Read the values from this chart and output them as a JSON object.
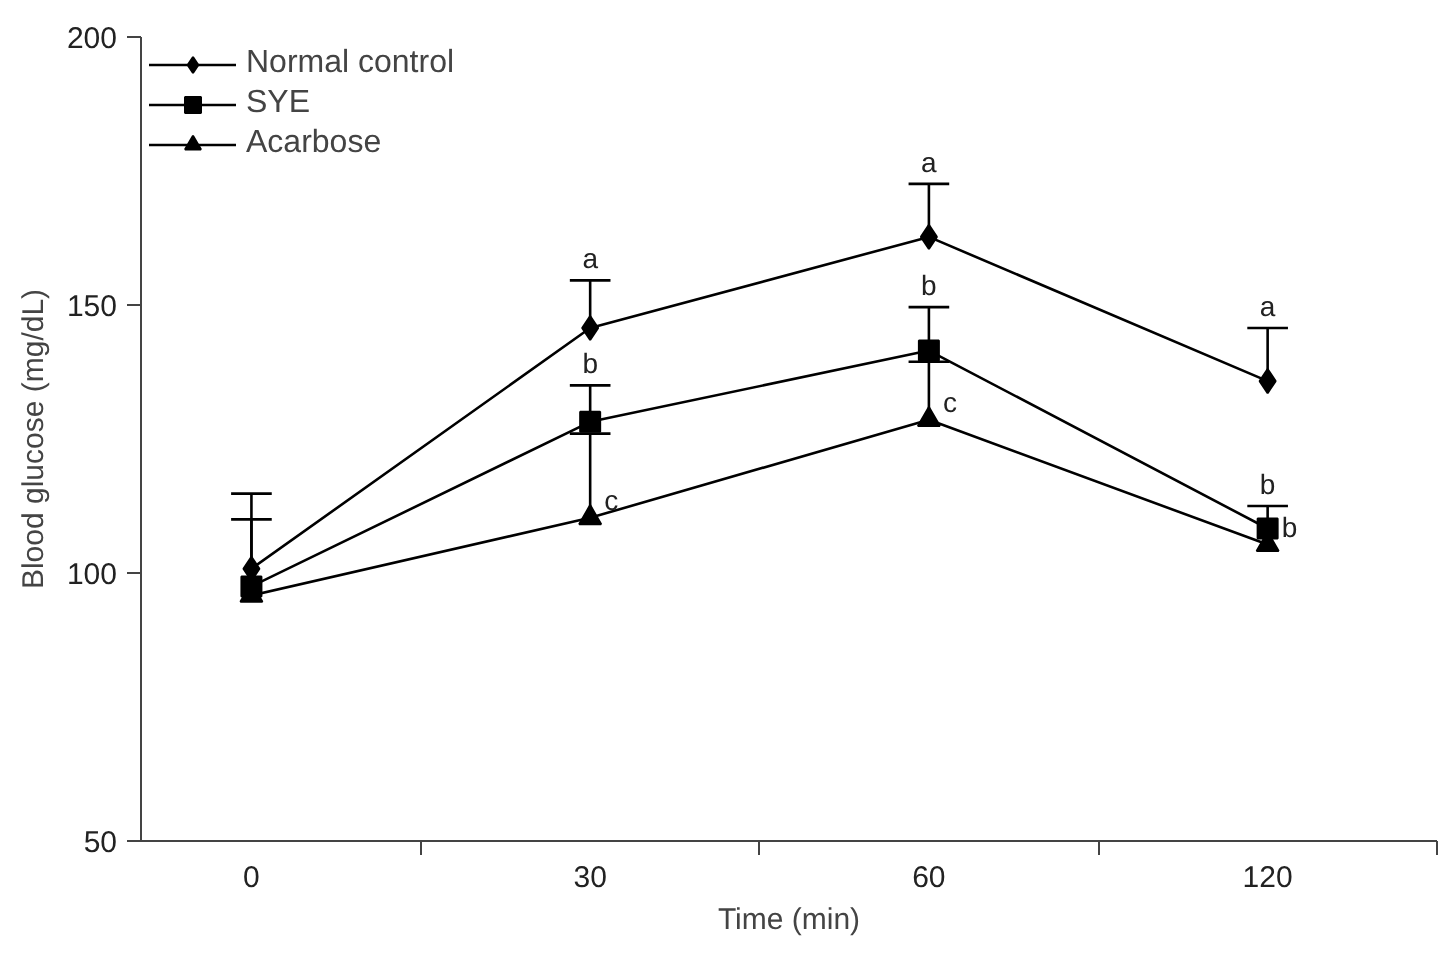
{
  "chart_data": {
    "type": "line",
    "xlabel": "Time (min)",
    "ylabel": "Blood glucose (mg/dL)",
    "categories": [
      "0",
      "30",
      "60",
      "120"
    ],
    "ylim": [
      50,
      200
    ],
    "yticks": [
      50,
      100,
      150,
      200
    ],
    "grid": false,
    "legend": "top left",
    "line_style": "solid",
    "series": [
      {
        "name": "Normal control",
        "color": "#000000",
        "marker": "diamond",
        "values": [
          100.8,
          145.7,
          162.7,
          135.8
        ],
        "errors": [
          [
            100.8,
            114.8
          ],
          [
            145.7,
            154.6
          ],
          [
            162.7,
            172.6
          ],
          [
            135.8,
            145.7
          ]
        ]
      },
      {
        "name": "SYE",
        "color": "#000000",
        "marker": "square",
        "values": [
          97.5,
          128.2,
          141.5,
          108.3
        ],
        "errors": [
          [
            97.5,
            110
          ],
          [
            128.2,
            135
          ],
          [
            141.5,
            149.6
          ],
          [
            108.3,
            112.5
          ]
        ]
      },
      {
        "name": "Acarbose",
        "color": "#000000",
        "marker": "triangle",
        "values": [
          95.8,
          110.3,
          128.6,
          105.3
        ],
        "errors": [
          null,
          [
            110.3,
            126
          ],
          [
            128.6,
            139.4
          ],
          null
        ]
      }
    ],
    "annotations": [
      {
        "text": "a",
        "x": "30",
        "y": 154.6
      },
      {
        "text": "b",
        "x": "30",
        "y": 135
      },
      {
        "text": "c",
        "x": "30",
        "y": 110.3
      },
      {
        "text": "a",
        "x": "60",
        "y": 172.6
      },
      {
        "text": "b",
        "x": "60",
        "y": 149.6
      },
      {
        "text": "c",
        "x": "60",
        "y": 128.6
      },
      {
        "text": "a",
        "x": "120",
        "y": 145.7
      },
      {
        "text": "b",
        "x": "120",
        "y": 112.5
      },
      {
        "text": "b",
        "x": "120",
        "y": 105.3
      }
    ]
  }
}
